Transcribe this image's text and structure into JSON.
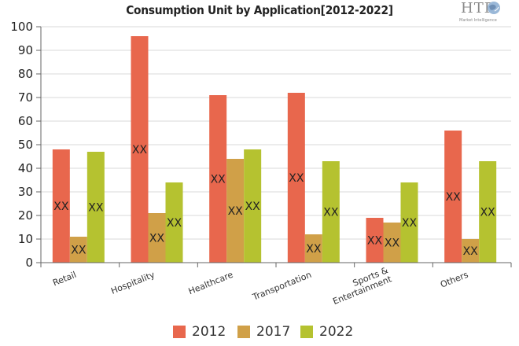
{
  "title": "Consumption Unit by  Application[2012-2022]",
  "logo": {
    "name": "HTF",
    "tagline": "Market Intelligence"
  },
  "chart_data": {
    "type": "bar",
    "title": "Consumption Unit by  Application[2012-2022]",
    "xlabel": "",
    "ylabel": "",
    "ylim": [
      0,
      100
    ],
    "yticks": [
      0,
      10,
      20,
      30,
      40,
      50,
      60,
      70,
      80,
      90,
      100
    ],
    "grid": true,
    "legend_position": "bottom",
    "categories": [
      "Retail",
      "Hospitality",
      "Healthcare",
      "Transportation",
      "Sports & Entertainment",
      "Others"
    ],
    "category_labels": [
      [
        "Retail"
      ],
      [
        "Hospitality"
      ],
      [
        "Healthcare"
      ],
      [
        "Transportation"
      ],
      [
        "Sports &",
        "Entertainment"
      ],
      [
        "Others"
      ]
    ],
    "series": [
      {
        "name": "2012",
        "color": "#e8674d",
        "values": [
          48,
          96,
          71,
          72,
          19,
          56
        ]
      },
      {
        "name": "2017",
        "color": "#d0a048",
        "values": [
          11,
          21,
          44,
          12,
          17,
          10
        ]
      },
      {
        "name": "2022",
        "color": "#b5c230",
        "values": [
          47,
          34,
          48,
          43,
          34,
          43
        ]
      }
    ],
    "data_label": "XX"
  }
}
